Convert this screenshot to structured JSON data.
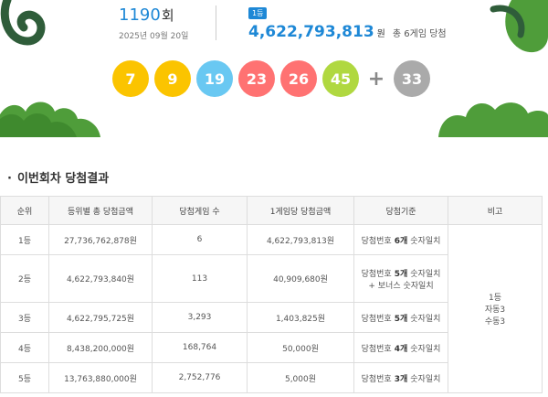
{
  "header": {
    "round_number": "1190",
    "round_unit": "회",
    "draw_date": "2025년 09월 20일",
    "rank_badge": "1등",
    "first_prize": "4,622,793,813",
    "prize_unit": "원",
    "winner_summary": "총 6게임 당첨"
  },
  "winning_numbers": {
    "balls": [
      {
        "number": "7",
        "color": "#fbc400"
      },
      {
        "number": "9",
        "color": "#fbc400"
      },
      {
        "number": "19",
        "color": "#69c8f2"
      },
      {
        "number": "23",
        "color": "#ff7272"
      },
      {
        "number": "26",
        "color": "#ff7272"
      },
      {
        "number": "45",
        "color": "#b0d840"
      }
    ],
    "plus": "+",
    "bonus": {
      "number": "33",
      "color": "#aaaaaa"
    }
  },
  "section_title": "이번회차 당첨결과",
  "table": {
    "columns": [
      "순위",
      "등위별 총 당첨금액",
      "당첨게임 수",
      "1게임당 당첨금액",
      "당첨기준",
      "비고"
    ],
    "rows": [
      {
        "rank": "1등",
        "total": "27,736,762,878원",
        "winners": "6",
        "per_game": "4,622,793,813원",
        "criteria": {
          "prefix": "당첨번호",
          "count": "6개",
          "suffix": "숫자일치"
        }
      },
      {
        "rank": "2등",
        "total": "4,622,793,840원",
        "winners": "113",
        "per_game": "40,909,680원",
        "criteria": {
          "prefix": "당첨번호",
          "count": "5개",
          "suffix": "숫자일치",
          "bonus_line": "+ 보너스 숫자일치"
        }
      },
      {
        "rank": "3등",
        "total": "4,622,795,725원",
        "winners": "3,293",
        "per_game": "1,403,825원",
        "criteria": {
          "prefix": "당첨번호",
          "count": "5개",
          "suffix": "숫자일치"
        }
      },
      {
        "rank": "4등",
        "total": "8,438,200,000원",
        "winners": "168,764",
        "per_game": "50,000원",
        "criteria": {
          "prefix": "당첨번호",
          "count": "4개",
          "suffix": "숫자일치"
        }
      },
      {
        "rank": "5등",
        "total": "13,763,880,000원",
        "winners": "2,752,776",
        "per_game": "5,000원",
        "criteria": {
          "prefix": "당첨번호",
          "count": "3개",
          "suffix": "숫자일치"
        }
      }
    ],
    "note": [
      "1등",
      "자동3",
      "수동3"
    ]
  }
}
